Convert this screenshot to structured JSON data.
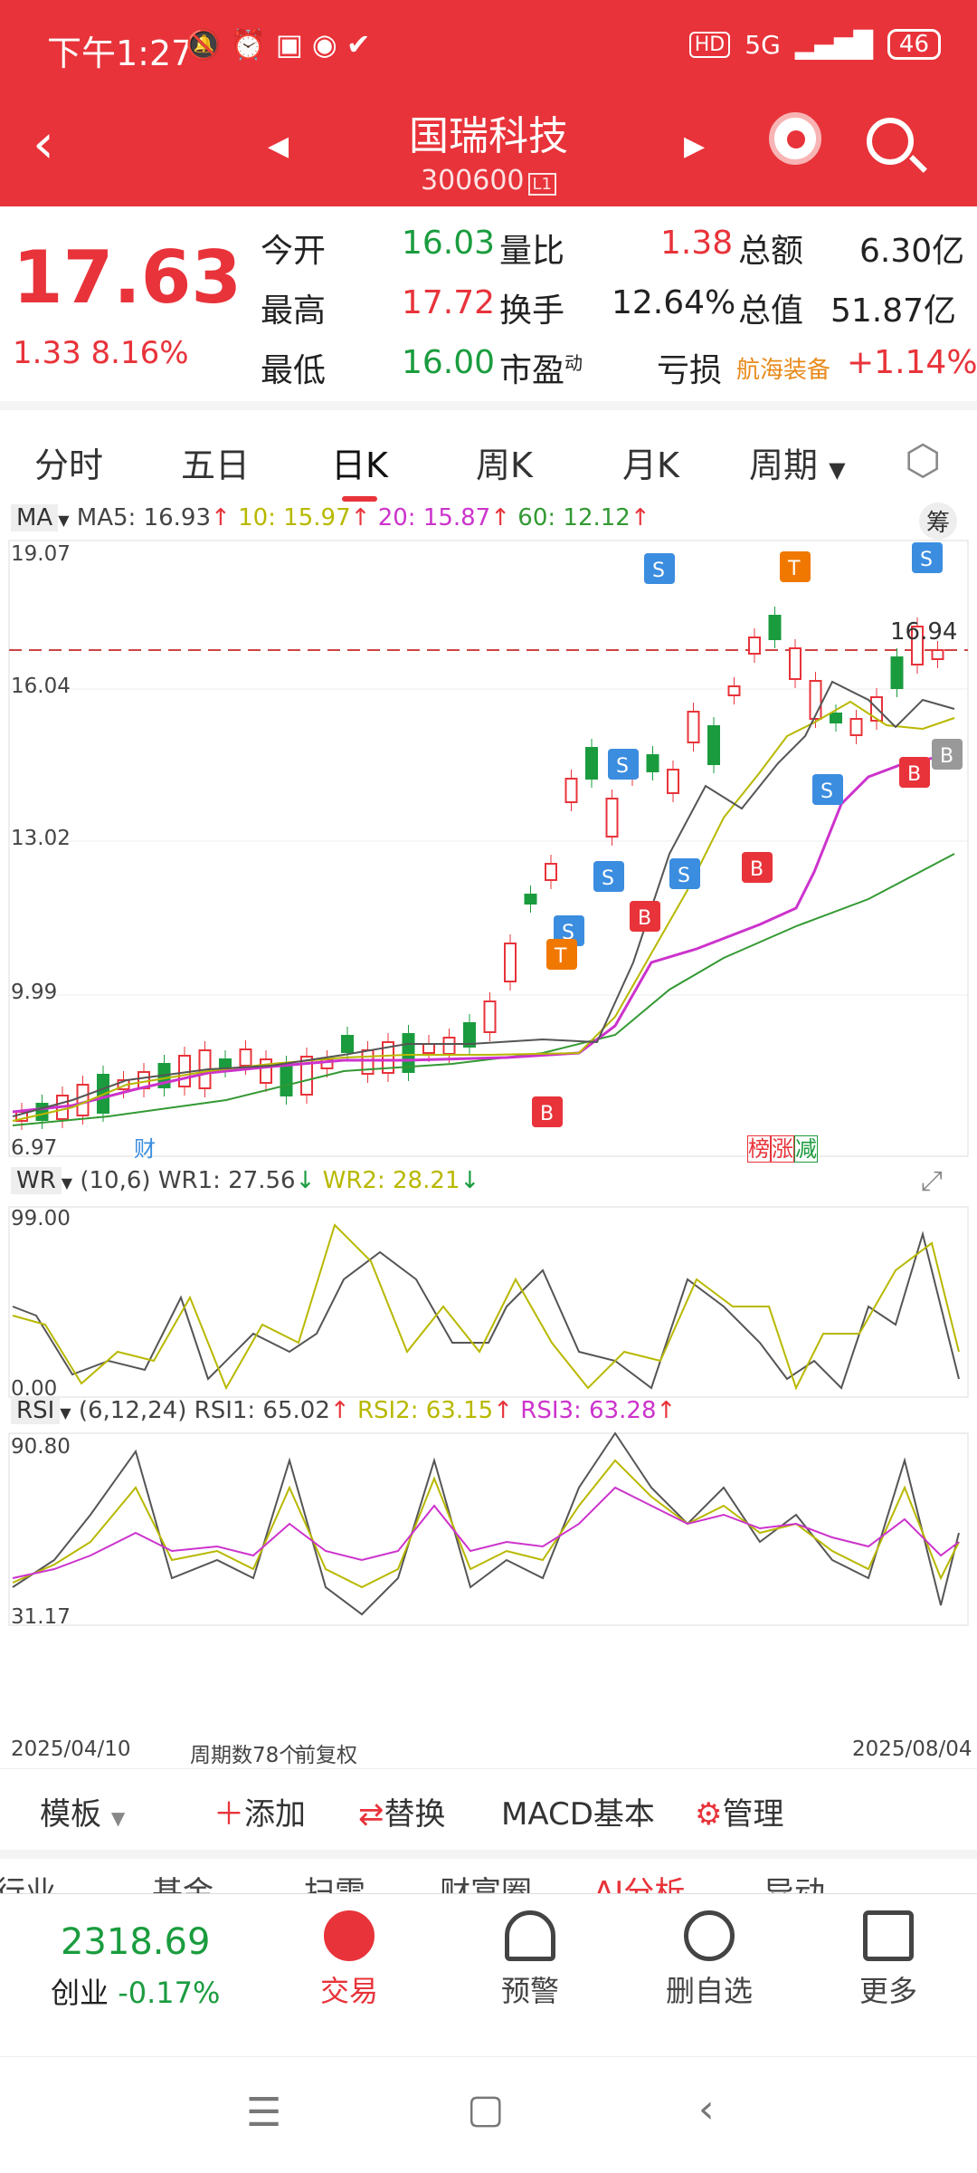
{
  "status_bar": {
    "time": "下午1:27",
    "battery": "46",
    "network": "5G",
    "hd": "HD"
  },
  "header": {
    "stock_name": "国瑞科技",
    "stock_code": "300600",
    "level_badge": "L1"
  },
  "quote": {
    "price": "17.63",
    "change": "1.33",
    "change_pct": "8.16%",
    "open_label": "今开",
    "open": "16.03",
    "high_label": "最高",
    "high": "17.72",
    "low_label": "最低",
    "low": "16.00",
    "vol_ratio_label": "量比",
    "vol_ratio": "1.38",
    "turnover_label": "换手",
    "turnover": "12.64%",
    "pe_label": "市盈",
    "pe_sup": "动",
    "pe": "亏损",
    "amount_label": "总额",
    "amount": "6.30亿",
    "mcap_label": "总值",
    "mcap": "51.87亿",
    "sector_name": "航海装备",
    "sector_change": "+1.14%"
  },
  "tabs": [
    "分时",
    "五日",
    "日K",
    "周K",
    "月K",
    "周期"
  ],
  "active_tab": "日K",
  "chart": {
    "ma_label": "MA",
    "ma_values": {
      "ma5": "MA5: 16.93",
      "ma10": "10: 15.97",
      "ma20": "20: 15.87",
      "ma60": "60: 12.12"
    },
    "chip_label": "筹",
    "price_axis": [
      "19.07",
      "16.04",
      "13.02",
      "9.99",
      "6.97"
    ],
    "last_price_label": "16.94",
    "event_markers": {
      "cai": "财",
      "bang": "榜",
      "zhang": "涨",
      "jian": "减"
    },
    "wr_label": "WR",
    "wr_values": {
      "params": "(10,6)",
      "wr1": "WR1: 27.56",
      "wr2": "WR2: 28.21"
    },
    "wr_axis": [
      "99.00",
      "0.00"
    ],
    "rsi_label": "RSI",
    "rsi_values": {
      "params": "(6,12,24)",
      "rsi1": "RSI1: 65.02",
      "rsi2": "RSI2: 63.15",
      "rsi3": "RSI3: 63.28"
    },
    "rsi_axis": [
      "90.80",
      "31.17"
    ],
    "start_date": "2025/04/10",
    "period_count": "周期数78个",
    "adjust": "前复权",
    "end_date": "2025/08/04"
  },
  "toolbar": {
    "template": "模板",
    "add": "添加",
    "replace": "替换",
    "indicator": "MACD基本",
    "manage": "管理"
  },
  "info_tabs": [
    "行业",
    "基金",
    "扫雷",
    "财富圈",
    "AI分析",
    "异动"
  ],
  "bottom_nav": {
    "index_value": "2318.69",
    "index_name": "创业",
    "index_change": "-0.17%",
    "trade": "交易",
    "alert": "预警",
    "remove": "删自选",
    "more": "更多"
  },
  "colors": {
    "brand_red": "#e8333a",
    "up": "#e8333a",
    "down": "#1a9c3e",
    "ma10": "#b8b800",
    "ma20": "#cc33cc",
    "ma60": "#339933"
  }
}
